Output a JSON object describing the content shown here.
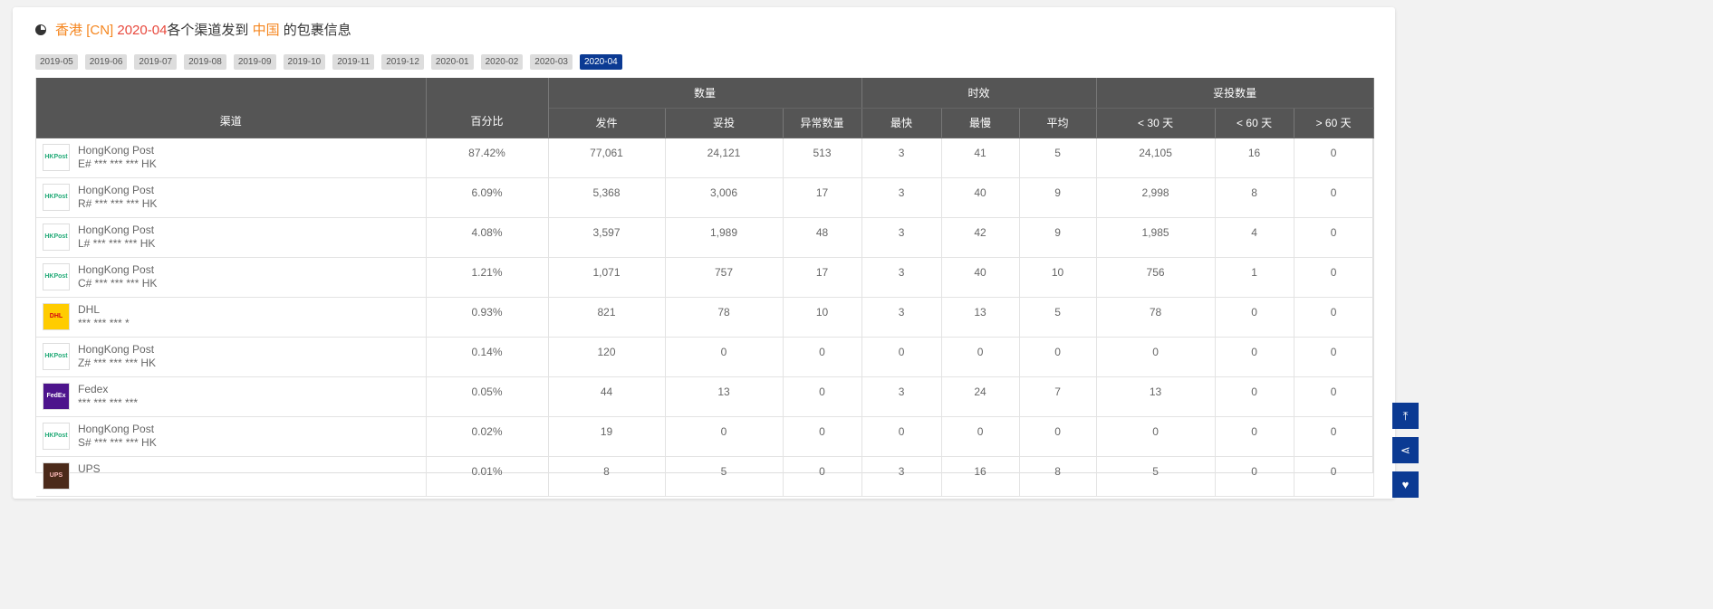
{
  "title": {
    "origin": "香港",
    "origin_code": "[CN]",
    "month": "2020-04",
    "middle": "各个渠道发到",
    "dest": "中国",
    "suffix": "的包裹信息",
    "icon": "pie-chart-icon"
  },
  "months": [
    "2019-05",
    "2019-06",
    "2019-07",
    "2019-08",
    "2019-09",
    "2019-10",
    "2019-11",
    "2019-12",
    "2020-01",
    "2020-02",
    "2020-03",
    "2020-04"
  ],
  "active_month": "2020-04",
  "table": {
    "headers": {
      "channel": "渠道",
      "percent": "百分比",
      "qty_group": "数量",
      "time_group": "时效",
      "delivered_group": "妥投数量",
      "sub": [
        "发件",
        "妥投",
        "异常数量",
        "最快",
        "最慢",
        "平均",
        "< 30 天",
        "< 60 天",
        "> 60 天"
      ]
    },
    "rows": [
      {
        "name": "HongKong Post",
        "code": "E# *** *** *** HK",
        "logo": "hkpost",
        "cells": [
          "87.42%",
          "77,061",
          "24,121",
          "513",
          "3",
          "41",
          "5",
          "24,105",
          "16",
          "0"
        ]
      },
      {
        "name": "HongKong Post",
        "code": "R# *** *** *** HK",
        "logo": "hkpost",
        "cells": [
          "6.09%",
          "5,368",
          "3,006",
          "17",
          "3",
          "40",
          "9",
          "2,998",
          "8",
          "0"
        ]
      },
      {
        "name": "HongKong Post",
        "code": "L# *** *** *** HK",
        "logo": "hkpost",
        "cells": [
          "4.08%",
          "3,597",
          "1,989",
          "48",
          "3",
          "42",
          "9",
          "1,985",
          "4",
          "0"
        ]
      },
      {
        "name": "HongKong Post",
        "code": "C# *** *** *** HK",
        "logo": "hkpost",
        "cells": [
          "1.21%",
          "1,071",
          "757",
          "17",
          "3",
          "40",
          "10",
          "756",
          "1",
          "0"
        ]
      },
      {
        "name": "DHL",
        "code": "*** *** *** *",
        "logo": "dhl",
        "cells": [
          "0.93%",
          "821",
          "78",
          "10",
          "3",
          "13",
          "5",
          "78",
          "0",
          "0"
        ]
      },
      {
        "name": "HongKong Post",
        "code": "Z# *** *** *** HK",
        "logo": "hkpost",
        "cells": [
          "0.14%",
          "120",
          "0",
          "0",
          "0",
          "0",
          "0",
          "0",
          "0",
          "0"
        ]
      },
      {
        "name": "Fedex",
        "code": "*** *** *** ***",
        "logo": "fedex",
        "cells": [
          "0.05%",
          "44",
          "13",
          "0",
          "3",
          "24",
          "7",
          "13",
          "0",
          "0"
        ]
      },
      {
        "name": "HongKong Post",
        "code": "S# *** *** *** HK",
        "logo": "hkpost",
        "cells": [
          "0.02%",
          "19",
          "0",
          "0",
          "0",
          "0",
          "0",
          "0",
          "0",
          "0"
        ]
      },
      {
        "name": "UPS",
        "code": "",
        "logo": "ups",
        "cells": [
          "0.01%",
          "8",
          "5",
          "0",
          "3",
          "16",
          "8",
          "5",
          "0",
          "0"
        ]
      }
    ]
  },
  "side_buttons": [
    {
      "icon": "back-to-top-icon",
      "glyph": "⤒"
    },
    {
      "icon": "share-icon",
      "glyph": "⋖"
    },
    {
      "icon": "heart-icon",
      "glyph": "♥"
    }
  ],
  "colors": {
    "accent": "#0b3a93",
    "header": "#555555",
    "orange": "#f5861f",
    "red": "#e8483c"
  }
}
